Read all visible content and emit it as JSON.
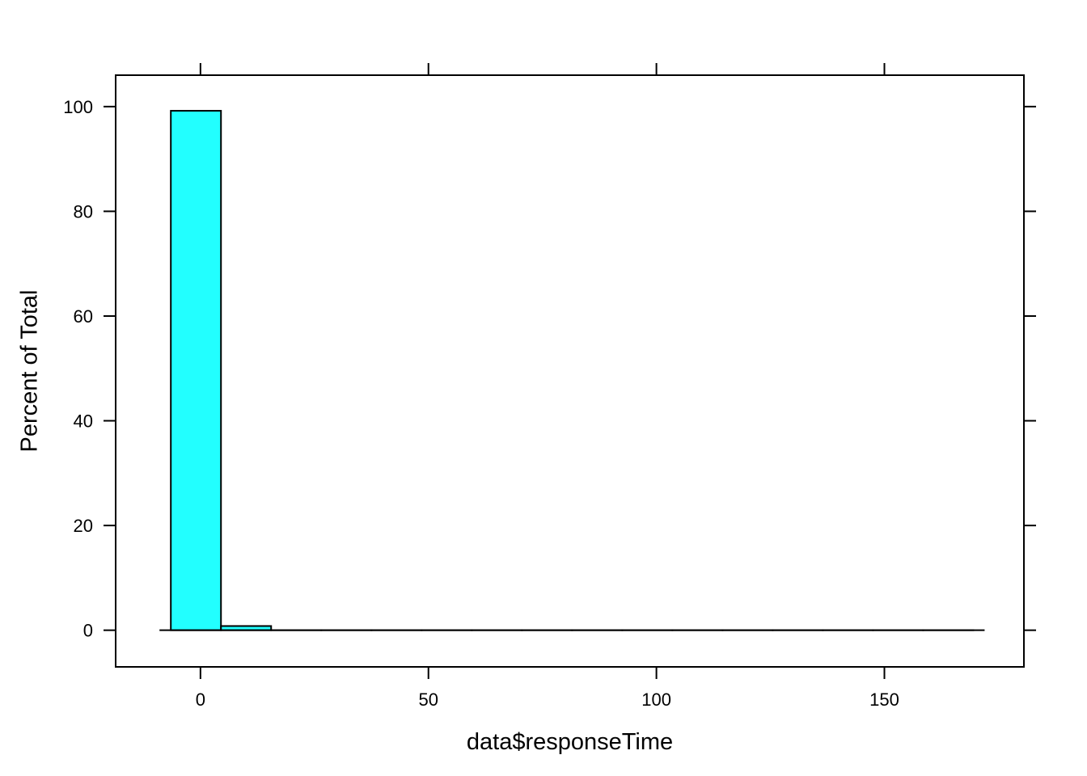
{
  "chart_data": {
    "type": "bar",
    "xlabel": "data$responseTime",
    "ylabel": "Percent of Total",
    "xlim": [
      -18.6,
      180.6
    ],
    "ylim": [
      -7,
      106
    ],
    "x_ticks": [
      0,
      50,
      100,
      150
    ],
    "y_ticks": [
      0,
      20,
      40,
      60,
      80,
      100
    ],
    "bin_edges": [
      -6.5,
      4.5,
      15.5,
      26.5,
      37.5,
      48.5,
      59.5,
      70.5,
      81.5,
      92.5,
      103.5,
      114.5,
      125.5,
      136.5,
      147.5,
      158.5,
      169.5
    ],
    "values": [
      99.2,
      0.8,
      0,
      0,
      0,
      0,
      0,
      0,
      0,
      0,
      0,
      0,
      0,
      0,
      0,
      0
    ],
    "bar_color": "#22ffff",
    "outline_color": "#000000",
    "grid": false
  }
}
